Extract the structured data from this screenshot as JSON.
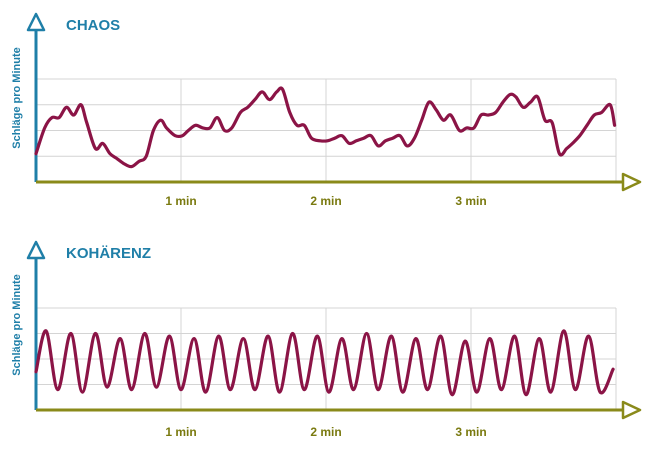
{
  "colors": {
    "axis_y": "#1f7fa8",
    "axis_x": "#8a8a1a",
    "title": "#1f7fa8",
    "tick_label": "#7a7a10",
    "grid": "#d4d4d4",
    "line": "#8b1446"
  },
  "chart_data": [
    {
      "type": "line",
      "title": "CHAOS",
      "ylabel": "Schläge pro Minute",
      "xlabel": "",
      "x_unit": "min",
      "xlim": [
        0,
        4
      ],
      "ylim": [
        0,
        4
      ],
      "x_ticks": [
        1,
        2,
        3
      ],
      "x_tick_labels": [
        "1 min",
        "2 min",
        "3 min"
      ],
      "grid": true,
      "series": [
        {
          "x": [
            0,
            0.06,
            0.11,
            0.16,
            0.21,
            0.26,
            0.31,
            0.35,
            0.41,
            0.46,
            0.51,
            0.56,
            0.61,
            0.66,
            0.71,
            0.76,
            0.81,
            0.86,
            0.9,
            0.96,
            1.01,
            1.05,
            1.1,
            1.15,
            1.2,
            1.25,
            1.3,
            1.35,
            1.41,
            1.46,
            1.51,
            1.56,
            1.61,
            1.66,
            1.7,
            1.75,
            1.8,
            1.85,
            1.9,
            1.96,
            2.01,
            2.06,
            2.11,
            2.16,
            2.21,
            2.26,
            2.31,
            2.36,
            2.41,
            2.46,
            2.51,
            2.56,
            2.61,
            2.66,
            2.71,
            2.76,
            2.81,
            2.86,
            2.92,
            2.97,
            3.02,
            3.07,
            3.12,
            3.17,
            3.22,
            3.27,
            3.31,
            3.36,
            3.41,
            3.46,
            3.51,
            3.56,
            3.61,
            3.66,
            3.7,
            3.75,
            3.8,
            3.85,
            3.9,
            3.96,
            3.99
          ],
          "y": [
            1.1,
            2.1,
            2.5,
            2.5,
            2.9,
            2.6,
            3.0,
            2.3,
            1.3,
            1.5,
            1.1,
            0.9,
            0.7,
            0.6,
            0.8,
            1.0,
            2.0,
            2.4,
            2.1,
            1.8,
            1.8,
            2.0,
            2.2,
            2.1,
            2.1,
            2.5,
            2.0,
            2.1,
            2.7,
            2.9,
            3.2,
            3.5,
            3.2,
            3.5,
            3.6,
            2.7,
            2.2,
            2.2,
            1.7,
            1.6,
            1.6,
            1.7,
            1.8,
            1.5,
            1.6,
            1.7,
            1.8,
            1.4,
            1.6,
            1.7,
            1.8,
            1.4,
            1.7,
            2.4,
            3.1,
            2.8,
            2.4,
            2.6,
            2.0,
            2.1,
            2.1,
            2.6,
            2.6,
            2.7,
            3.1,
            3.4,
            3.3,
            2.9,
            3.1,
            3.3,
            2.4,
            2.3,
            1.1,
            1.3,
            1.5,
            1.8,
            2.2,
            2.6,
            2.7,
            3.0,
            2.2
          ]
        }
      ]
    },
    {
      "type": "line",
      "title": "KOHÄRENZ",
      "ylabel": "Schläge pro Minute",
      "xlabel": "",
      "x_unit": "min",
      "xlim": [
        0,
        4
      ],
      "ylim": [
        0,
        4
      ],
      "x_ticks": [
        1,
        2,
        3
      ],
      "x_tick_labels": [
        "1 min",
        "2 min",
        "3 min"
      ],
      "grid": true,
      "series": [
        {
          "x": [
            0,
            0.07,
            0.15,
            0.24,
            0.32,
            0.41,
            0.49,
            0.58,
            0.66,
            0.75,
            0.83,
            0.92,
            1.0,
            1.09,
            1.17,
            1.26,
            1.34,
            1.43,
            1.51,
            1.6,
            1.68,
            1.77,
            1.85,
            1.94,
            2.02,
            2.11,
            2.19,
            2.28,
            2.36,
            2.45,
            2.53,
            2.62,
            2.7,
            2.79,
            2.87,
            2.96,
            3.04,
            3.13,
            3.21,
            3.3,
            3.38,
            3.47,
            3.55,
            3.64,
            3.72,
            3.81,
            3.89,
            3.98
          ],
          "y": [
            1.5,
            3.1,
            0.8,
            3.0,
            0.7,
            3.0,
            0.9,
            2.8,
            0.8,
            3.0,
            0.9,
            2.9,
            0.8,
            2.8,
            0.7,
            2.9,
            0.8,
            2.8,
            0.8,
            2.9,
            0.7,
            3.0,
            0.8,
            2.9,
            0.7,
            2.8,
            0.8,
            3.0,
            0.8,
            2.9,
            0.7,
            2.8,
            0.8,
            2.9,
            0.6,
            2.7,
            0.7,
            2.8,
            0.8,
            2.9,
            0.6,
            2.8,
            0.7,
            3.1,
            0.8,
            2.9,
            0.7,
            1.6
          ]
        }
      ]
    }
  ]
}
